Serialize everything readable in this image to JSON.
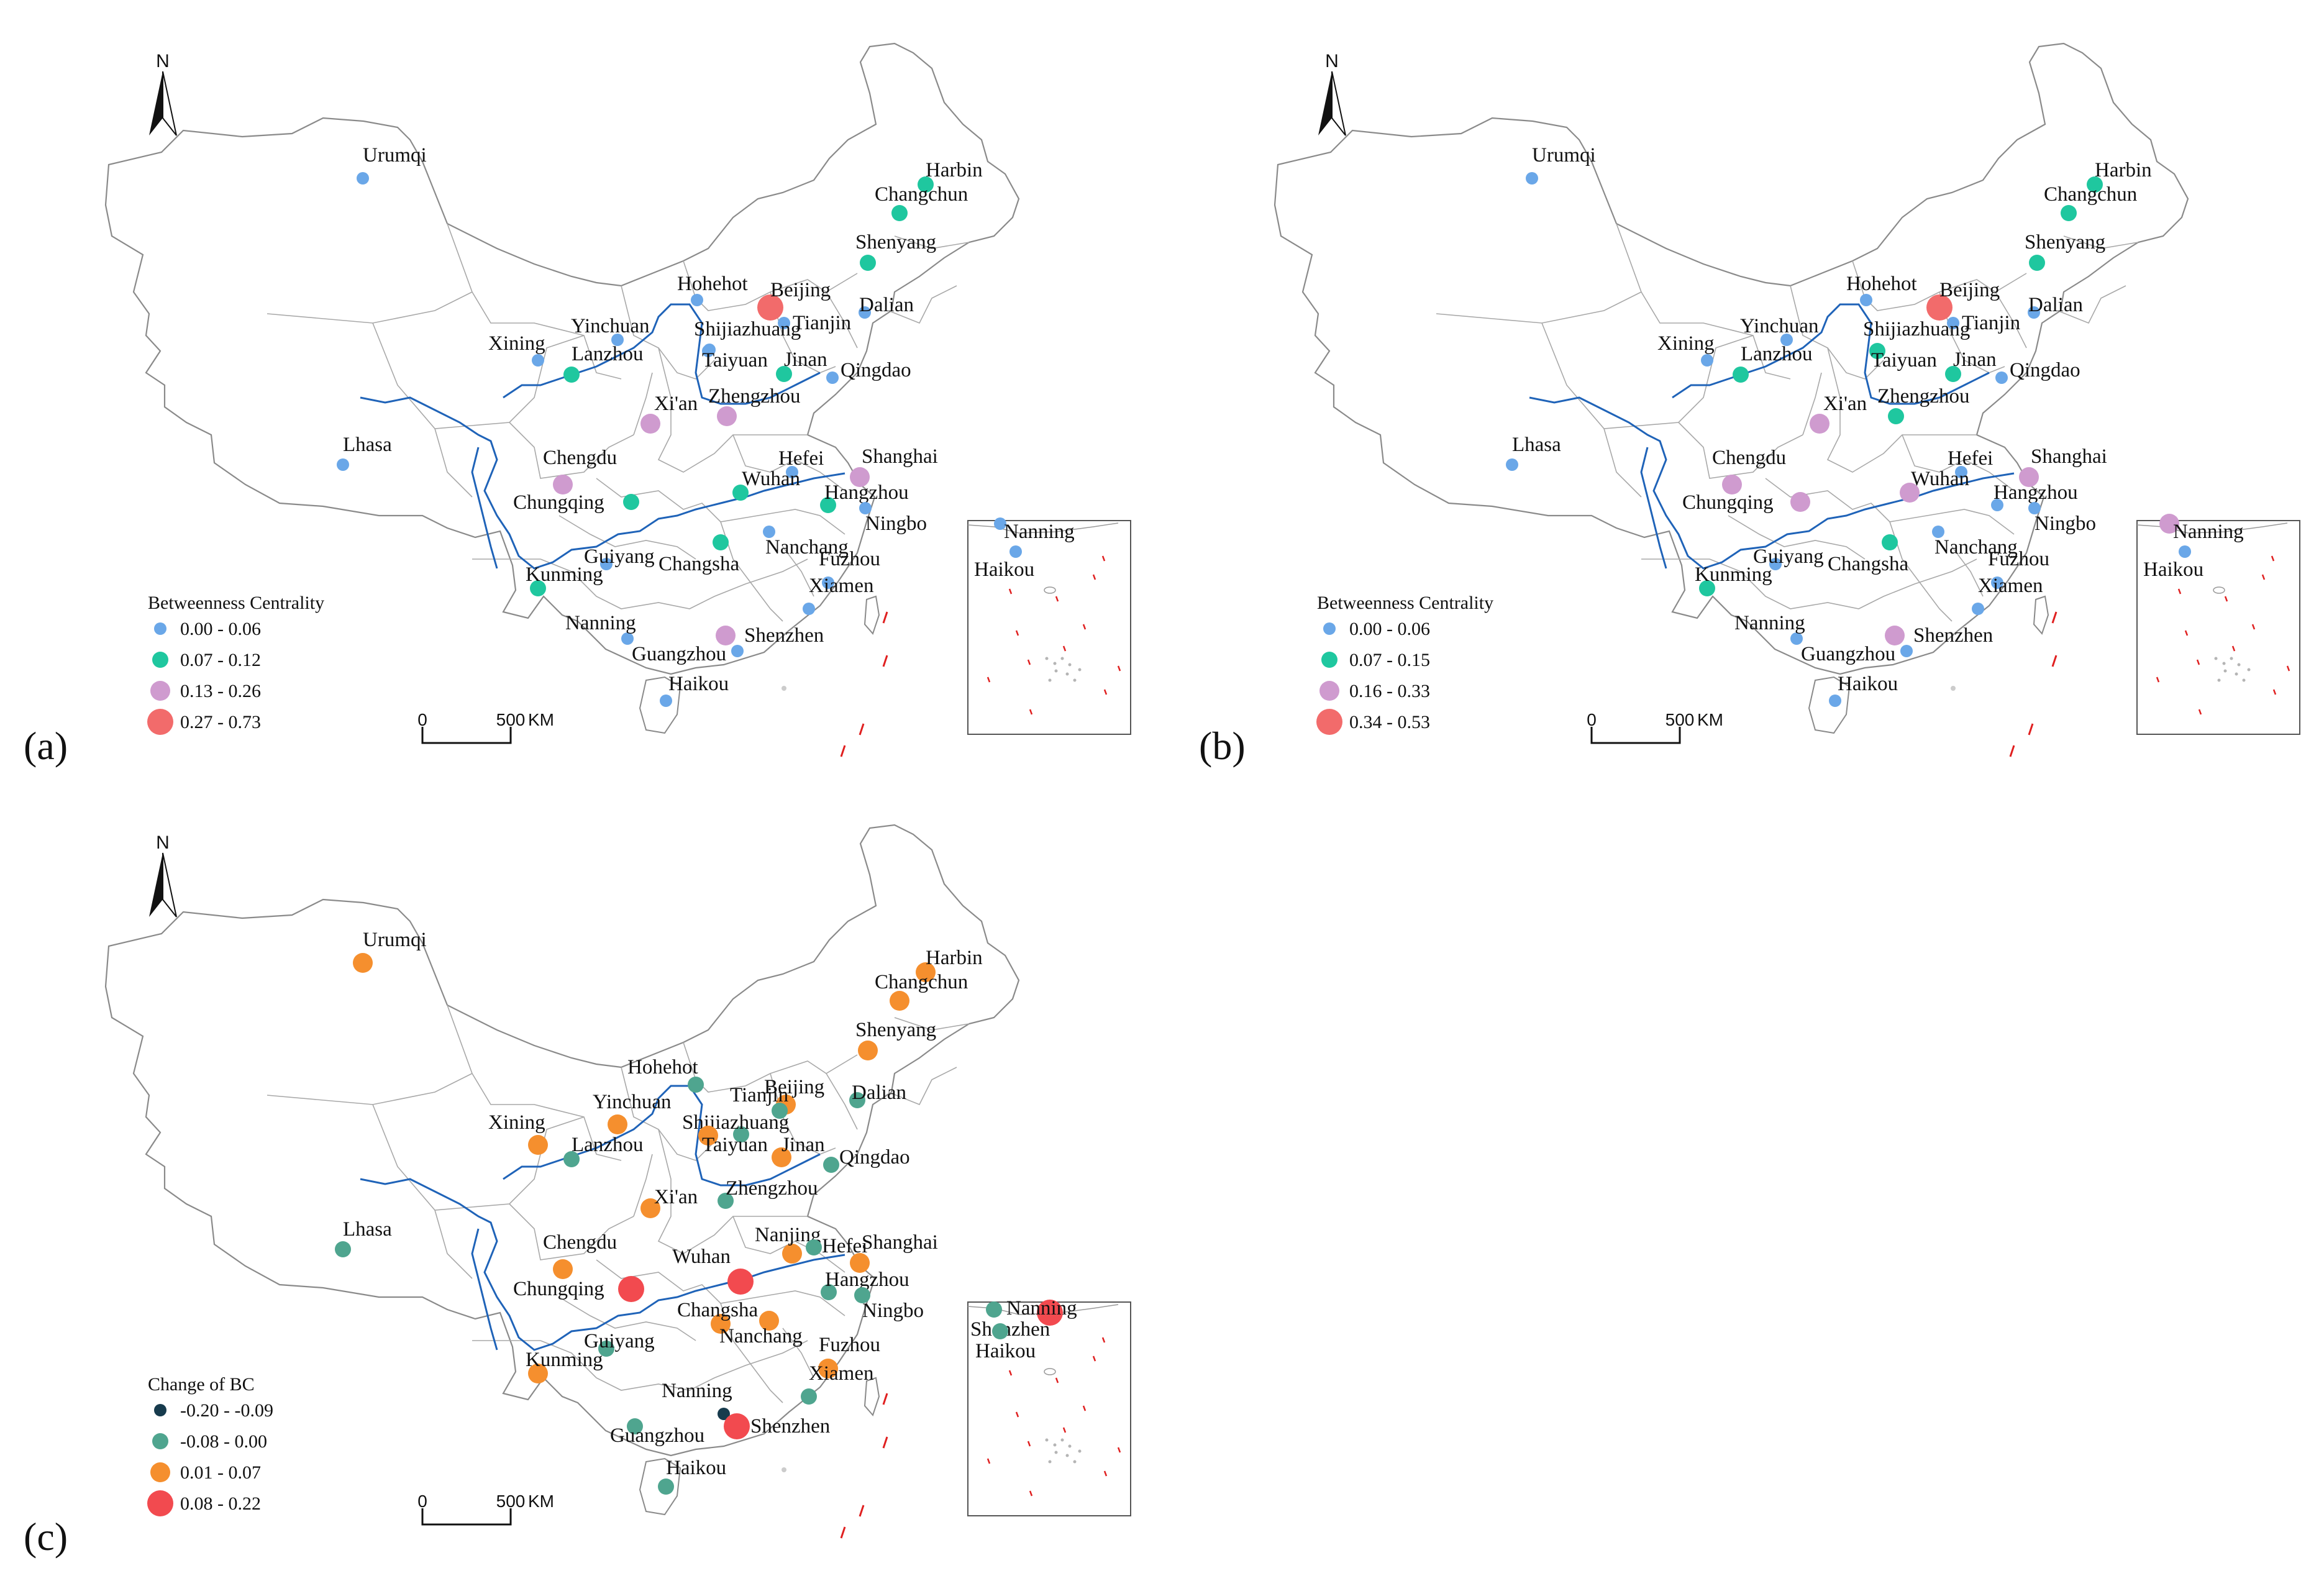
{
  "panels": [
    {
      "letter": "(a)",
      "north": "N",
      "scale": {
        "zero": "0",
        "dist": "500",
        "unit": "KM"
      },
      "legend": {
        "title": "Betweenness Centrality",
        "classes": [
          {
            "label": "0.00 - 0.06",
            "color": "#6aa7e8",
            "size": "s"
          },
          {
            "label": "0.07 - 0.12",
            "color": "#1fc79f",
            "size": "m"
          },
          {
            "label": "0.13 - 0.26",
            "color": "#cf9bcf",
            "size": "l"
          },
          {
            "label": "0.27 - 0.73",
            "color": "#f26b6b",
            "size": "xl"
          }
        ]
      },
      "cities": [
        {
          "name": "Urumqi",
          "cls": 0
        },
        {
          "name": "Harbin",
          "cls": 1
        },
        {
          "name": "Changchun",
          "cls": 1
        },
        {
          "name": "Shenyang",
          "cls": 1
        },
        {
          "name": "Hohehot",
          "cls": 0
        },
        {
          "name": "Beijing",
          "cls": 3
        },
        {
          "name": "Tianjin",
          "cls": 0
        },
        {
          "name": "Dalian",
          "cls": 0
        },
        {
          "name": "Yinchuan",
          "cls": 0
        },
        {
          "name": "Xining",
          "cls": 0
        },
        {
          "name": "Lanzhou",
          "cls": 1
        },
        {
          "name": "Shijiazhuang",
          "cls": 0
        },
        {
          "name": "Taiyuan",
          "cls": 0
        },
        {
          "name": "Jinan",
          "cls": 1
        },
        {
          "name": "Qingdao",
          "cls": 0
        },
        {
          "name": "Xi'an",
          "cls": 2
        },
        {
          "name": "Zhengzhou",
          "cls": 2
        },
        {
          "name": "Lhasa",
          "cls": 0
        },
        {
          "name": "Chengdu",
          "cls": 2
        },
        {
          "name": "Hefei",
          "cls": 0
        },
        {
          "name": "Shanghai",
          "cls": 2
        },
        {
          "name": "Wuhan",
          "cls": 1
        },
        {
          "name": "Hangzhou",
          "cls": 1
        },
        {
          "name": "Chungqing",
          "cls": 1
        },
        {
          "name": "Ningbo",
          "cls": 0
        },
        {
          "name": "Changsha",
          "cls": 1
        },
        {
          "name": "Guiyang",
          "cls": 0
        },
        {
          "name": "Nanchang",
          "cls": 0
        },
        {
          "name": "Fuzhou",
          "cls": 0
        },
        {
          "name": "Kunming",
          "cls": 1
        },
        {
          "name": "Xiamen",
          "cls": 0
        },
        {
          "name": "Nanning",
          "cls": 0
        },
        {
          "name": "Shenzhen",
          "cls": 2
        },
        {
          "name": "Guangzhou",
          "cls": 0
        },
        {
          "name": "Haikou",
          "cls": 0
        }
      ],
      "inset_cities": [
        {
          "name": "Nanning",
          "cls": 0
        },
        {
          "name": "Haikou",
          "cls": 0
        }
      ]
    },
    {
      "letter": "(b)",
      "north": "N",
      "scale": {
        "zero": "0",
        "dist": "500",
        "unit": "KM"
      },
      "legend": {
        "title": "Betweenness Centrality",
        "classes": [
          {
            "label": "0.00 - 0.06",
            "color": "#6aa7e8",
            "size": "s"
          },
          {
            "label": "0.07 - 0.15",
            "color": "#1fc79f",
            "size": "m"
          },
          {
            "label": "0.16 - 0.33",
            "color": "#cf9bcf",
            "size": "l"
          },
          {
            "label": "0.34 - 0.53",
            "color": "#f26b6b",
            "size": "xl"
          }
        ]
      },
      "cities": [
        {
          "name": "Urumqi",
          "cls": 0
        },
        {
          "name": "Harbin",
          "cls": 1
        },
        {
          "name": "Changchun",
          "cls": 1
        },
        {
          "name": "Shenyang",
          "cls": 1
        },
        {
          "name": "Hohehot",
          "cls": 0
        },
        {
          "name": "Beijing",
          "cls": 3
        },
        {
          "name": "Tianjin",
          "cls": 0
        },
        {
          "name": "Dalian",
          "cls": 0
        },
        {
          "name": "Yinchuan",
          "cls": 0
        },
        {
          "name": "Xining",
          "cls": 0
        },
        {
          "name": "Lanzhou",
          "cls": 1
        },
        {
          "name": "Shijiazhuang",
          "cls": 0
        },
        {
          "name": "Taiyuan",
          "cls": 1
        },
        {
          "name": "Jinan",
          "cls": 1
        },
        {
          "name": "Qingdao",
          "cls": 0
        },
        {
          "name": "Xi'an",
          "cls": 2
        },
        {
          "name": "Zhengzhou",
          "cls": 1
        },
        {
          "name": "Lhasa",
          "cls": 0
        },
        {
          "name": "Chengdu",
          "cls": 2
        },
        {
          "name": "Hefei",
          "cls": 0
        },
        {
          "name": "Shanghai",
          "cls": 2
        },
        {
          "name": "Wuhan",
          "cls": 2
        },
        {
          "name": "Hangzhou",
          "cls": 0
        },
        {
          "name": "Chungqing",
          "cls": 2
        },
        {
          "name": "Ningbo",
          "cls": 0
        },
        {
          "name": "Changsha",
          "cls": 1
        },
        {
          "name": "Guiyang",
          "cls": 0
        },
        {
          "name": "Nanchang",
          "cls": 0
        },
        {
          "name": "Fuzhou",
          "cls": 0
        },
        {
          "name": "Kunming",
          "cls": 1
        },
        {
          "name": "Xiamen",
          "cls": 0
        },
        {
          "name": "Nanning",
          "cls": 0
        },
        {
          "name": "Shenzhen",
          "cls": 2
        },
        {
          "name": "Guangzhou",
          "cls": 0
        },
        {
          "name": "Haikou",
          "cls": 0
        }
      ],
      "inset_cities": [
        {
          "name": "Nanning",
          "cls": 2
        },
        {
          "name": "Haikou",
          "cls": 0
        }
      ]
    },
    {
      "letter": "(c)",
      "north": "N",
      "scale": {
        "zero": "0",
        "dist": "500",
        "unit": "KM"
      },
      "legend": {
        "title": "Change of BC",
        "classes": [
          {
            "label": "-0.20 - -0.09",
            "color": "#173b4d",
            "size": "s"
          },
          {
            "label": "-0.08 - 0.00",
            "color": "#4fa58f",
            "size": "m"
          },
          {
            "label": "0.01 - 0.07",
            "color": "#f58f2e",
            "size": "l"
          },
          {
            "label": "0.08 - 0.22",
            "color": "#f24a4f",
            "size": "xl"
          }
        ]
      },
      "cities": [
        {
          "name": "Urumqi",
          "cls": 2
        },
        {
          "name": "Harbin",
          "cls": 2
        },
        {
          "name": "Changchun",
          "cls": 2
        },
        {
          "name": "Shenyang",
          "cls": 2
        },
        {
          "name": "Hohehot",
          "cls": 1
        },
        {
          "name": "Beijing",
          "cls": 2
        },
        {
          "name": "Tianjin",
          "cls": 1
        },
        {
          "name": "Dalian",
          "cls": 1
        },
        {
          "name": "Yinchuan",
          "cls": 2
        },
        {
          "name": "Xining",
          "cls": 2
        },
        {
          "name": "Lanzhou",
          "cls": 1
        },
        {
          "name": "Shijiazhuang",
          "cls": 1
        },
        {
          "name": "Taiyuan",
          "cls": 2
        },
        {
          "name": "Jinan",
          "cls": 2
        },
        {
          "name": "Qingdao",
          "cls": 1
        },
        {
          "name": "Xi'an",
          "cls": 2
        },
        {
          "name": "Zhengzhou",
          "cls": 1
        },
        {
          "name": "Lhasa",
          "cls": 1
        },
        {
          "name": "Chengdu",
          "cls": 2
        },
        {
          "name": "Nanjing",
          "cls": 2
        },
        {
          "name": "Shanghai",
          "cls": 2
        },
        {
          "name": "Wuhan",
          "cls": 3
        },
        {
          "name": "Hefei",
          "cls": 1
        },
        {
          "name": "Hangzhou",
          "cls": 1
        },
        {
          "name": "Chungqing",
          "cls": 3
        },
        {
          "name": "Ningbo",
          "cls": 1
        },
        {
          "name": "Changsha",
          "cls": 2
        },
        {
          "name": "Guiyang",
          "cls": 1
        },
        {
          "name": "Nanchang",
          "cls": 2
        },
        {
          "name": "Fuzhou",
          "cls": 2
        },
        {
          "name": "Kunming",
          "cls": 2
        },
        {
          "name": "Xiamen",
          "cls": 1
        },
        {
          "name": "Nanning",
          "cls": 0
        },
        {
          "name": "Shenzhen",
          "cls": 3
        },
        {
          "name": "Guangzhou",
          "cls": 1
        },
        {
          "name": "Haikou",
          "cls": 1
        }
      ],
      "inset_cities": [
        {
          "name": "Nanning",
          "cls": 3
        },
        {
          "name": "Shenzhen",
          "cls": 1
        },
        {
          "name": "Haikou",
          "cls": 1
        }
      ]
    }
  ]
}
